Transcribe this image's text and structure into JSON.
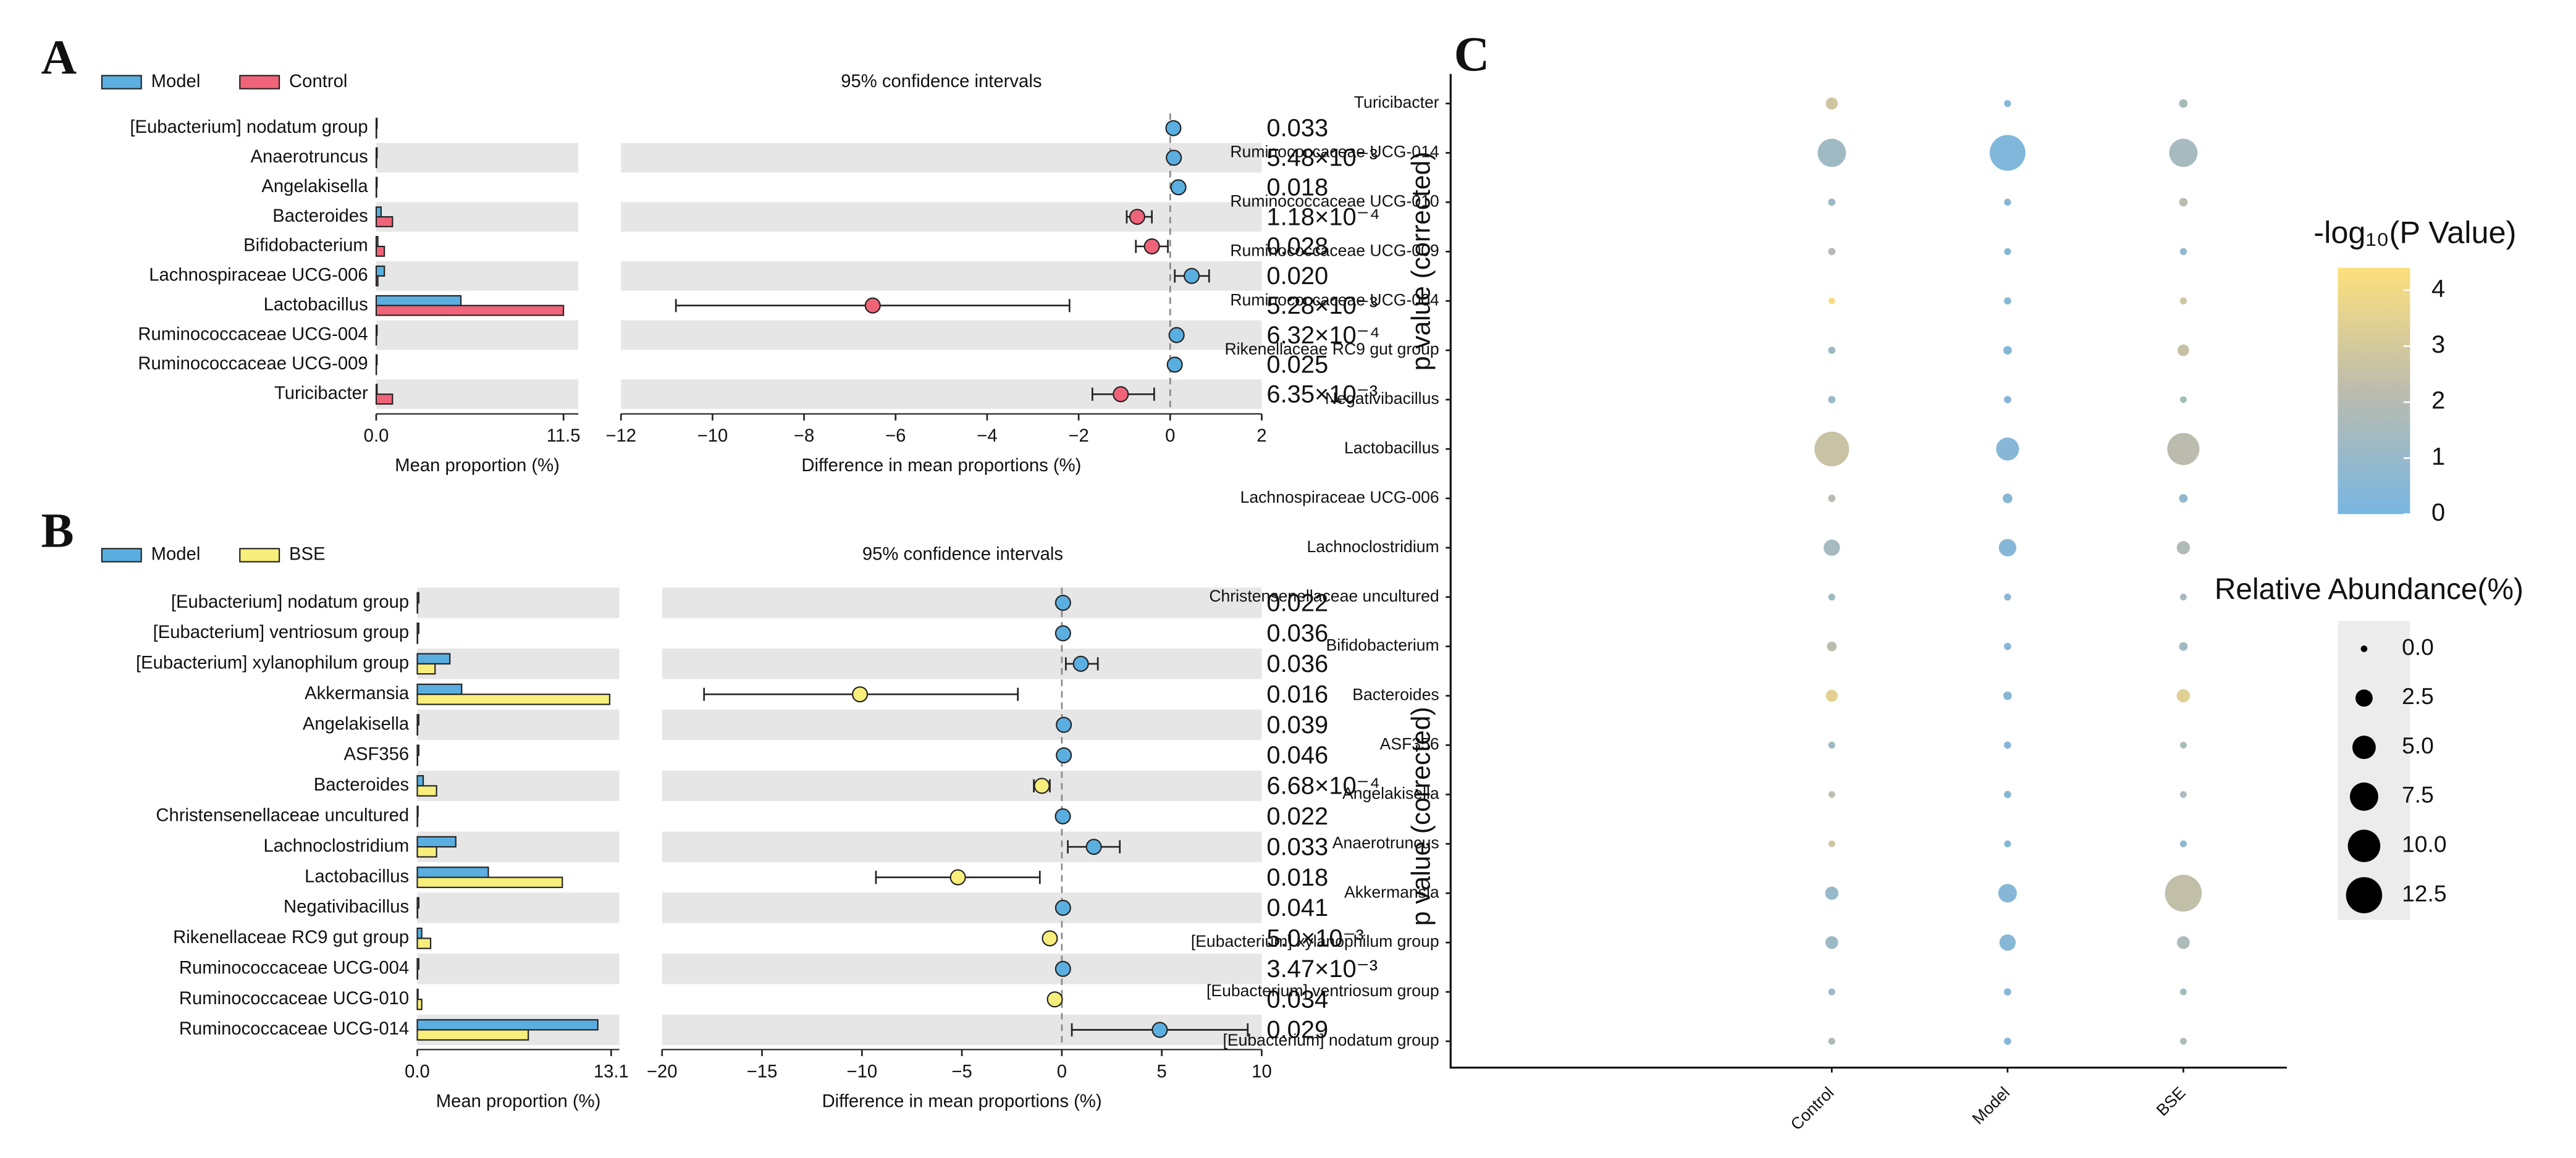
{
  "chart_data": [
    {
      "type": "extended_error_bar",
      "label": "A",
      "title": "95% confidence intervals",
      "categories": [
        "[Eubacterium] nodatum group",
        "Anaerotruncus",
        "Angelakisella",
        "Bacteroides",
        "Bifidobacterium",
        "Lachnospiraceae UCG-006",
        "Lactobacillus",
        "Ruminococcaceae UCG-004",
        "Ruminococcaceae UCG-009",
        "Turicibacter"
      ],
      "series": [
        {
          "name": "Model",
          "color": "#5aaee0",
          "values": [
            0.05,
            0.05,
            0.05,
            0.3,
            0.1,
            0.5,
            5.2,
            0.05,
            0.05,
            0.05
          ]
        },
        {
          "name": "Control",
          "color": "#ef6478",
          "values": [
            0.02,
            0.02,
            0.02,
            1.0,
            0.5,
            0.1,
            11.5,
            0.01,
            0.01,
            1.0
          ]
        }
      ],
      "xlim": [
        0,
        11.5
      ],
      "xticks": [
        {
          "value": 0,
          "label": "0.0"
        },
        11.5
      ],
      "xlabel": "Mean proportion (%)",
      "difference": {
        "values": [
          0.07,
          0.08,
          0.18,
          -0.72,
          -0.4,
          0.47,
          -6.5,
          0.14,
          0.1,
          -1.08
        ],
        "ci_low": [
          0.02,
          0.03,
          0.13,
          -0.95,
          -0.75,
          0.1,
          -10.8,
          0.09,
          0.05,
          -1.7
        ],
        "ci_high": [
          0.12,
          0.13,
          0.23,
          -0.4,
          -0.05,
          0.85,
          -2.2,
          0.19,
          0.15,
          -0.35
        ]
      },
      "diff_xlim": [
        -12,
        2
      ],
      "diff_xticks": [
        {
          "value": -12,
          "label": "−12"
        },
        {
          "value": -10,
          "label": "−10"
        },
        {
          "value": -8,
          "label": "−8"
        },
        {
          "value": -6,
          "label": "−6"
        },
        {
          "value": -4,
          "label": "−4"
        },
        {
          "value": -2,
          "label": "−2"
        },
        0,
        2
      ],
      "diff_xlabel": "Difference in mean proportions (%)",
      "p_labels": [
        "0.033",
        "5.48×10⁻³",
        "0.018",
        "1.18×10⁻⁴",
        "0.028",
        "0.020",
        "5.28×10⁻³",
        "6.32×10⁻⁴",
        "0.025",
        "6.35×10⁻³"
      ],
      "ylabel_right": "p value (corrected)"
    },
    {
      "type": "extended_error_bar",
      "label": "B",
      "title": "95% confidence intervals",
      "categories": [
        "[Eubacterium] nodatum group",
        "[Eubacterium] ventriosum group",
        "[Eubacterium] xylanophilum group",
        "Akkermansia",
        "Angelakisella",
        "ASF356",
        "Bacteroides",
        "Christensenellaceae uncultured",
        "Lachnoclostridium",
        "Lactobacillus",
        "Negativibacillus",
        "Rikenellaceae RC9 gut group",
        "Ruminococcaceae UCG-004",
        "Ruminococcaceae UCG-010",
        "Ruminococcaceae UCG-014"
      ],
      "series": [
        {
          "name": "Model",
          "color": "#5aaee0",
          "values": [
            0.1,
            0.1,
            2.2,
            3.0,
            0.1,
            0.1,
            0.4,
            0.05,
            2.6,
            4.8,
            0.1,
            0.3,
            0.1,
            0.05,
            12.2
          ]
        },
        {
          "name": "BSE",
          "color": "#f7ee7c",
          "values": [
            0.02,
            0.02,
            1.2,
            13.0,
            0.02,
            0.02,
            1.3,
            0.02,
            1.3,
            9.8,
            0.02,
            0.9,
            0.02,
            0.3,
            7.5
          ]
        }
      ],
      "xlim": [
        0,
        13.1
      ],
      "xticks": [
        {
          "value": 0,
          "label": "0.0"
        },
        13.1
      ],
      "xlabel": "Mean proportion (%)",
      "difference": {
        "values": [
          0.06,
          0.06,
          0.95,
          -10.1,
          0.1,
          0.1,
          -1.0,
          0.05,
          1.6,
          -5.2,
          0.06,
          -0.6,
          0.06,
          -0.35,
          4.9
        ],
        "ci_low": [
          0.01,
          0.01,
          0.2,
          -17.9,
          0.05,
          0.05,
          -1.4,
          0.0,
          0.3,
          -9.3,
          0.01,
          -0.8,
          0.01,
          -0.5,
          0.5
        ],
        "ci_high": [
          0.11,
          0.11,
          1.8,
          -2.2,
          0.15,
          0.15,
          -0.6,
          0.1,
          2.9,
          -1.1,
          0.11,
          -0.4,
          0.11,
          -0.2,
          9.3
        ]
      },
      "diff_xlim": [
        -20,
        10
      ],
      "diff_xticks": [
        {
          "value": -20,
          "label": "−20"
        },
        {
          "value": -15,
          "label": "−15"
        },
        {
          "value": -10,
          "label": "−10"
        },
        {
          "value": -5,
          "label": "−5"
        },
        0,
        5,
        10
      ],
      "diff_xlabel": "Difference in mean proportions (%)",
      "p_labels": [
        "0.022",
        "0.036",
        "0.036",
        "0.016",
        "0.039",
        "0.046",
        "6.68×10⁻⁴",
        "0.022",
        "0.033",
        "0.018",
        "0.041",
        "5.0×10⁻³",
        "3.47×10⁻³",
        "0.034",
        "0.029"
      ],
      "ylabel_right": "p value (corrected)"
    },
    {
      "type": "bubble",
      "label": "C",
      "categories": [
        "Turicibacter",
        "Ruminococcaceae UCG-014",
        "Ruminococcaceae UCG-010",
        "Ruminococcaceae UCG-009",
        "Ruminococcaceae UCG-004",
        "Rikenellaceae RC9 gut group",
        "Negativibacillus",
        "Lactobacillus",
        "Lachnospiraceae UCG-006",
        "Lachnoclostridium",
        "Christensenellaceae uncultured",
        "Bifidobacterium",
        "Bacteroides",
        "ASF356",
        "Angelakisella",
        "Anaerotruncus",
        "Akkermansia",
        "[Eubacterium] xylanophilum group",
        "[Eubacterium] ventriosum group",
        "[Eubacterium] nodatum group"
      ],
      "x_categories": [
        "Control",
        "Model",
        "BSE"
      ],
      "series": [
        {
          "values": [
            1.0,
            7.5,
            0.1,
            0.1,
            0.01,
            0.1,
            0.1,
            11.5,
            0.1,
            2.2,
            0.05,
            0.5,
            1.0,
            0.05,
            0.02,
            0.02,
            1.3,
            1.2,
            0.05,
            0.05
          ],
          "log_p": [
            2.8,
            1.3,
            1.2,
            2.0,
            4.2,
            1.3,
            1.0,
            2.6,
            2.0,
            1.5,
            1.3,
            2.2,
            3.5,
            1.3,
            2.3,
            2.8,
            1.0,
            1.2,
            1.2,
            1.7
          ]
        },
        {
          "values": [
            0.05,
            12.2,
            0.05,
            0.05,
            0.1,
            0.3,
            0.1,
            4.8,
            0.5,
            2.6,
            0.05,
            0.1,
            0.3,
            0.1,
            0.1,
            0.05,
            3.0,
            2.2,
            0.1,
            0.1
          ],
          "log_p": [
            0.5,
            0.3,
            0.5,
            0.5,
            0.5,
            0.5,
            0.5,
            0.5,
            0.5,
            0.5,
            0.5,
            0.5,
            0.5,
            0.5,
            0.5,
            0.5,
            0.5,
            0.5,
            0.5,
            0.5
          ]
        },
        {
          "values": [
            0.3,
            7.5,
            0.3,
            0.05,
            0.05,
            0.9,
            0.02,
            9.8,
            0.3,
            1.3,
            0.02,
            0.3,
            1.3,
            0.02,
            0.02,
            0.05,
            13.0,
            1.2,
            0.02,
            0.02
          ],
          "log_p": [
            1.6,
            1.5,
            2.2,
            0.8,
            2.8,
            2.5,
            1.5,
            2.2,
            0.8,
            1.8,
            1.5,
            1.3,
            3.4,
            1.6,
            1.6,
            0.9,
            2.4,
            1.7,
            1.5,
            1.7
          ]
        }
      ],
      "color_title": "-log₁₀(P Value)",
      "clim": [
        0,
        4.4
      ],
      "cticks": [
        0,
        1,
        2,
        3,
        4
      ],
      "colorscale": [
        "#78b6e2",
        "#bcbcae",
        "#fde07c"
      ],
      "size_title": "Relative Abundance(%)",
      "size_ticks": [
        {
          "value": 0,
          "label": "0.0"
        },
        2.5,
        {
          "value": 5,
          "label": "5.0"
        },
        7.5,
        {
          "value": 10,
          "label": "10.0"
        },
        12.5
      ]
    }
  ]
}
